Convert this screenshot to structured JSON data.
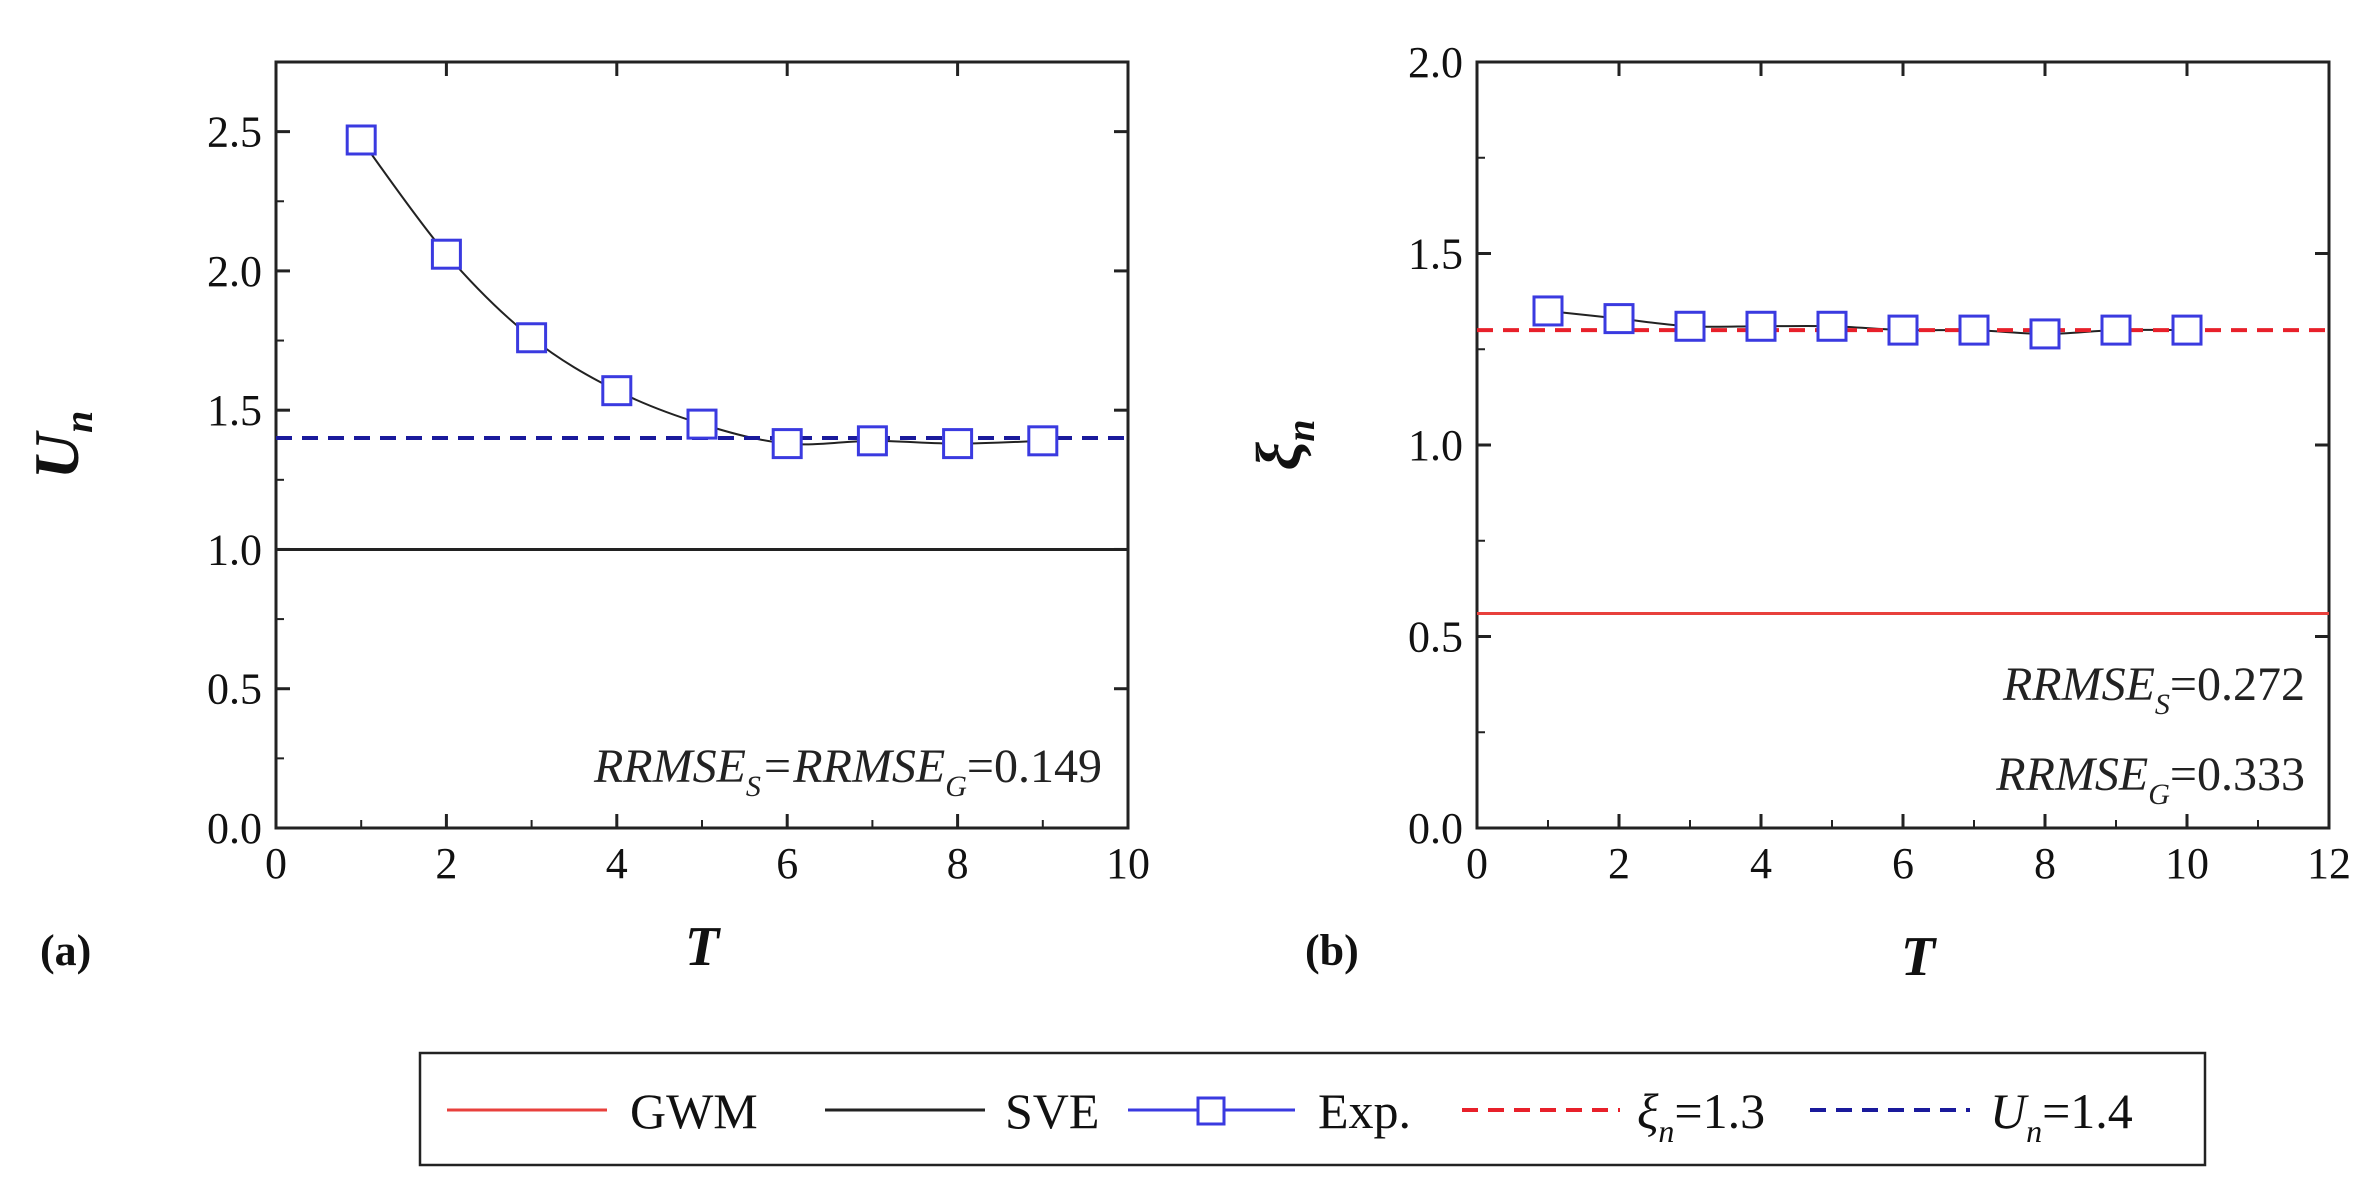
{
  "colors": {
    "gwm": "#e8403c",
    "sve": "#222222",
    "exp": "#3a3ae0",
    "xi_ref": "#e8202a",
    "u_ref": "#1a1a9c",
    "axis": "#222222"
  },
  "chart_data": [
    {
      "id": "a",
      "type": "line",
      "panel_label": "(a)",
      "xlabel": "T",
      "ylabel": "U",
      "ylabel_sub": "n",
      "xlim": [
        0,
        10
      ],
      "ylim": [
        0,
        2.75
      ],
      "xticks": [
        "0",
        "2",
        "4",
        "6",
        "8",
        "10"
      ],
      "xtick_values": [
        0,
        2,
        4,
        6,
        8,
        10
      ],
      "yticks": [
        "0.0",
        "0.5",
        "1.0",
        "1.5",
        "2.0",
        "2.5"
      ],
      "ytick_values": [
        0,
        0.5,
        1.0,
        1.5,
        2.0,
        2.5
      ],
      "series": [
        {
          "name": "Exp.",
          "x": [
            1,
            2,
            3,
            4,
            5,
            6,
            7,
            8,
            9
          ],
          "y": [
            2.47,
            2.06,
            1.76,
            1.57,
            1.45,
            1.38,
            1.39,
            1.38,
            1.39
          ]
        },
        {
          "name": "SVE",
          "constant": 1.0
        },
        {
          "name": "U_n=1.4",
          "constant": 1.4
        }
      ],
      "annotation": {
        "term1": "RRMSE",
        "sub1": "S",
        "eq": "=",
        "term2": "RRMSE",
        "sub2": "G",
        "value": "=0.149"
      }
    },
    {
      "id": "b",
      "type": "line",
      "panel_label": "(b)",
      "xlabel": "T",
      "ylabel": "ξ",
      "ylabel_sub": "n",
      "xlim": [
        0,
        12
      ],
      "ylim": [
        0,
        2.0
      ],
      "xticks": [
        "0",
        "2",
        "4",
        "6",
        "8",
        "10",
        "12"
      ],
      "xtick_values": [
        0,
        2,
        4,
        6,
        8,
        10,
        12
      ],
      "yticks": [
        "0.0",
        "0.5",
        "1.0",
        "1.5",
        "2.0"
      ],
      "ytick_values": [
        0,
        0.5,
        1.0,
        1.5,
        2.0
      ],
      "series": [
        {
          "name": "Exp.",
          "x": [
            1,
            2,
            3,
            4,
            5,
            6,
            7,
            8,
            9,
            10
          ],
          "y": [
            1.35,
            1.33,
            1.31,
            1.31,
            1.31,
            1.3,
            1.3,
            1.29,
            1.3,
            1.3
          ]
        },
        {
          "name": "GWM",
          "constant": 0.56
        },
        {
          "name": "ξ_n=1.3",
          "constant": 1.3
        }
      ],
      "annotation": {
        "line1_term": "RRMSE",
        "line1_sub": "S",
        "line1_value": "=0.272",
        "line2_term": "RRMSE",
        "line2_sub": "G",
        "line2_value": "=0.333"
      }
    }
  ],
  "legend": {
    "items": [
      {
        "label": "GWM"
      },
      {
        "label": "SVE"
      },
      {
        "label": "Exp."
      },
      {
        "label_main": "ξ",
        "label_sub": "n",
        "label_value": "=1.3"
      },
      {
        "label_main": "U",
        "label_sub": "n",
        "label_value": "=1.4"
      }
    ]
  }
}
